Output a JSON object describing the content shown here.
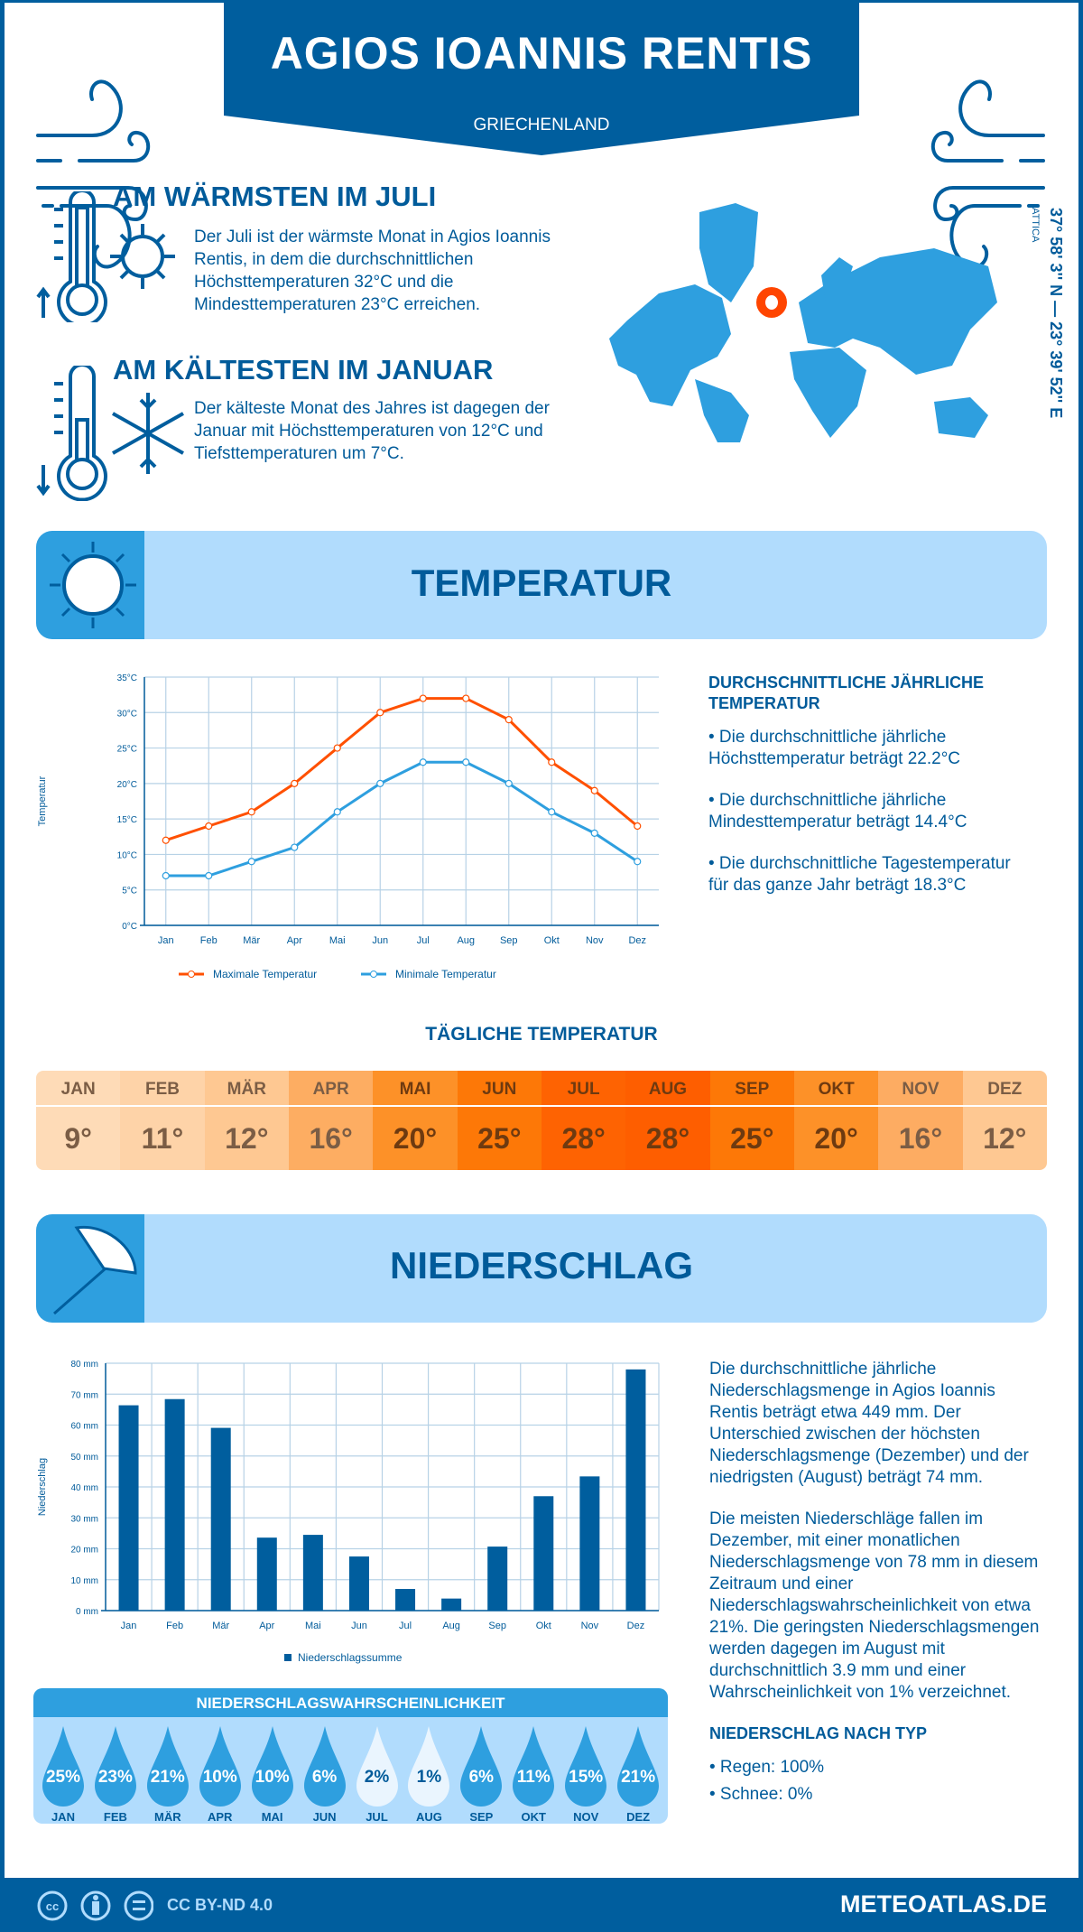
{
  "header": {
    "title": "AGIOS IOANNIS RENTIS",
    "country": "GRIECHENLAND"
  },
  "warm": {
    "title": "AM WÄRMSTEN IM JULI",
    "text": "Der Juli ist der wärmste Monat in Agios Ioannis Rentis, in dem die durchschnittlichen Höchsttemperaturen 32°C und die Mindesttemperaturen 23°C erreichen."
  },
  "cold": {
    "title": "AM KÄLTESTEN IM JANUAR",
    "text": "Der kälteste Monat des Jahres ist dagegen der Januar mit Höchsttemperaturen von 12°C und Tiefsttemperaturen um 7°C."
  },
  "location": {
    "coords": "37° 58' 3'' N — 23° 39' 52'' E",
    "region": "ATTICA"
  },
  "colors": {
    "dark_blue": "#005e9e",
    "mid_blue": "#2e9fdf",
    "light_blue": "#b1dcfd",
    "max_line": "#ff5000",
    "min_line": "#2e9fdf",
    "marker": "#ff4500"
  },
  "temp_section": {
    "title": "TEMPERATUR",
    "annual_title": "DURCHSCHNITTLICHE JÄHRLICHE TEMPERATUR",
    "bullets": [
      "• Die durchschnittliche jährliche Höchsttemperatur beträgt 22.2°C",
      "• Die durchschnittliche jährliche Mindesttemperatur beträgt 14.4°C",
      "• Die durchschnittliche Tagestemperatur für das ganze Jahr beträgt 18.3°C"
    ],
    "daily_title": "TÄGLICHE TEMPERATUR",
    "daily": [
      {
        "m": "JAN",
        "v": "9°",
        "bg": "#fedbb7"
      },
      {
        "m": "FEB",
        "v": "11°",
        "bg": "#fed3a8"
      },
      {
        "m": "MÄR",
        "v": "12°",
        "bg": "#fec892"
      },
      {
        "m": "APR",
        "v": "16°",
        "bg": "#fdad62"
      },
      {
        "m": "MAI",
        "v": "20°",
        "bg": "#fd9128"
      },
      {
        "m": "JUN",
        "v": "25°",
        "bg": "#fd7807"
      },
      {
        "m": "JUL",
        "v": "28°",
        "bg": "#fe6302"
      },
      {
        "m": "AUG",
        "v": "28°",
        "bg": "#fe5e00"
      },
      {
        "m": "SEP",
        "v": "25°",
        "bg": "#fd7807"
      },
      {
        "m": "OKT",
        "v": "20°",
        "bg": "#fd9128"
      },
      {
        "m": "NOV",
        "v": "16°",
        "bg": "#fdac62"
      },
      {
        "m": "DEZ",
        "v": "12°",
        "bg": "#fec892"
      }
    ]
  },
  "precip_section": {
    "title": "NIEDERSCHLAG",
    "text1": "Die durchschnittliche jährliche Niederschlagsmenge in Agios Ioannis Rentis beträgt etwa 449 mm. Der Unterschied zwischen der höchsten Niederschlagsmenge (Dezember) und der niedrigsten (August) beträgt 74 mm.",
    "text2": "Die meisten Niederschläge fallen im Dezember, mit einer monatlichen Niederschlagsmenge von 78 mm in diesem Zeitraum und einer Niederschlagswahrscheinlichkeit von etwa 21%. Die geringsten Niederschlagsmengen werden dagegen im August mit durchschnittlich 3.9 mm und einer Wahrscheinlichkeit von 1% verzeichnet.",
    "type_title": "NIEDERSCHLAG NACH TYP",
    "types": [
      "• Regen: 100%",
      "• Schnee: 0%"
    ],
    "prob_title": "NIEDERSCHLAGSWAHRSCHEINLICHKEIT",
    "prob": [
      {
        "m": "JAN",
        "v": "25%"
      },
      {
        "m": "FEB",
        "v": "23%"
      },
      {
        "m": "MÄR",
        "v": "21%"
      },
      {
        "m": "APR",
        "v": "10%"
      },
      {
        "m": "MAI",
        "v": "10%"
      },
      {
        "m": "JUN",
        "v": "6%"
      },
      {
        "m": "JUL",
        "v": "2%"
      },
      {
        "m": "AUG",
        "v": "1%"
      },
      {
        "m": "SEP",
        "v": "6%"
      },
      {
        "m": "OKT",
        "v": "11%"
      },
      {
        "m": "NOV",
        "v": "15%"
      },
      {
        "m": "DEZ",
        "v": "21%"
      }
    ]
  },
  "chart_data": [
    {
      "type": "line",
      "categories": [
        "Jan",
        "Feb",
        "Mär",
        "Apr",
        "Mai",
        "Jun",
        "Jul",
        "Aug",
        "Sep",
        "Okt",
        "Nov",
        "Dez"
      ],
      "series": [
        {
          "name": "Maximale Temperatur",
          "values": [
            12,
            14,
            16,
            20,
            25,
            30,
            32,
            32,
            29,
            23,
            19,
            14
          ]
        },
        {
          "name": "Minimale Temperatur",
          "values": [
            7,
            7,
            9,
            11,
            16,
            20,
            23,
            23,
            20,
            16,
            13,
            9
          ]
        }
      ],
      "ylabel": "Temperatur",
      "ylim": [
        0,
        35
      ],
      "yticks": [
        "0°C",
        "5°C",
        "10°C",
        "15°C",
        "20°C",
        "25°C",
        "30°C",
        "35°C"
      ],
      "grid": true,
      "legend": "bottom"
    },
    {
      "type": "bar",
      "categories": [
        "Jan",
        "Feb",
        "Mär",
        "Apr",
        "Mai",
        "Jun",
        "Jul",
        "Aug",
        "Sep",
        "Okt",
        "Nov",
        "Dez"
      ],
      "series": [
        {
          "name": "Niederschlagssumme",
          "values": [
            66.4,
            68.4,
            59.1,
            23.6,
            24.5,
            17.5,
            7.0,
            3.9,
            20.7,
            37.0,
            43.4,
            78.0
          ]
        }
      ],
      "ylabel": "Niederschlag",
      "ylim": [
        0,
        80
      ],
      "yticks": [
        "0 mm",
        "10 mm",
        "20 mm",
        "30 mm",
        "40 mm",
        "50 mm",
        "60 mm",
        "70 mm",
        "80 mm"
      ],
      "grid": true,
      "legend": "bottom"
    }
  ],
  "footer": {
    "license": "CC BY-ND 4.0",
    "brand": "METEOATLAS.DE"
  }
}
